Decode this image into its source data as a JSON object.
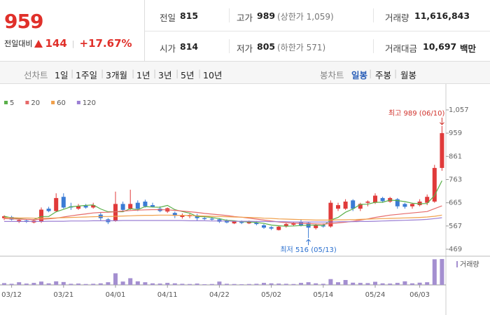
{
  "header": {
    "price": "959",
    "change_label": "전일대비",
    "change": "144",
    "change_rate": "+17.67%"
  },
  "stats": [
    [
      {
        "label": "전일",
        "value": "815"
      },
      {
        "label": "고가",
        "value": "989",
        "note": "(상한가 1,059)"
      },
      {
        "label": "거래량",
        "value": "11,616,843"
      }
    ],
    [
      {
        "label": "시가",
        "value": "814"
      },
      {
        "label": "저가",
        "value": "805",
        "note": "(하한가 571)"
      },
      {
        "label": "거래대금",
        "value": "10,697",
        "unit": "백만"
      }
    ]
  ],
  "tabs": {
    "line_label": "선차트",
    "line_periods": [
      "1일",
      "1주일",
      "3개월",
      "1년",
      "3년",
      "5년",
      "10년"
    ],
    "candle_label": "봉차트",
    "candle_periods": [
      "일봉",
      "주봉",
      "월봉"
    ]
  },
  "chart_data": {
    "type": "candlestick",
    "categories": [
      null,
      "03/12",
      null,
      null,
      null,
      null,
      null,
      null,
      "03/21",
      null,
      null,
      null,
      null,
      null,
      null,
      "04/01",
      null,
      null,
      null,
      null,
      null,
      null,
      "04/11",
      null,
      null,
      null,
      null,
      null,
      null,
      "04/22",
      null,
      null,
      null,
      null,
      null,
      null,
      "05/02",
      null,
      null,
      null,
      null,
      null,
      null,
      "05/14",
      null,
      null,
      null,
      null,
      null,
      null,
      "05/24",
      null,
      null,
      null,
      null,
      null,
      "06/03",
      null,
      null,
      null
    ],
    "open": [
      600,
      605,
      585,
      590,
      582,
      585,
      640,
      630,
      690,
      650,
      640,
      652,
      645,
      615,
      595,
      588,
      660,
      640,
      665,
      670,
      655,
      640,
      628,
      622,
      605,
      608,
      612,
      600,
      598,
      595,
      590,
      578,
      585,
      578,
      582,
      570,
      562,
      550,
      565,
      572,
      585,
      580,
      558,
      570,
      565,
      640,
      640,
      675,
      640,
      665,
      665,
      685,
      670,
      680,
      660,
      650,
      655,
      665,
      670,
      812
    ],
    "high": [
      612,
      610,
      598,
      596,
      594,
      645,
      648,
      705,
      705,
      665,
      660,
      660,
      665,
      625,
      600,
      712,
      670,
      720,
      675,
      678,
      665,
      650,
      645,
      628,
      620,
      618,
      618,
      610,
      605,
      600,
      595,
      590,
      590,
      590,
      588,
      575,
      566,
      568,
      580,
      585,
      595,
      585,
      575,
      578,
      675,
      665,
      680,
      680,
      665,
      675,
      705,
      690,
      690,
      685,
      665,
      665,
      680,
      700,
      825,
      989
    ],
    "low": [
      592,
      590,
      580,
      580,
      578,
      580,
      625,
      625,
      640,
      635,
      635,
      640,
      640,
      590,
      575,
      585,
      630,
      635,
      630,
      645,
      645,
      625,
      622,
      600,
      598,
      600,
      590,
      592,
      590,
      580,
      578,
      575,
      575,
      575,
      570,
      555,
      550,
      548,
      560,
      568,
      565,
      516,
      552,
      560,
      560,
      630,
      635,
      630,
      630,
      650,
      660,
      665,
      665,
      640,
      640,
      640,
      650,
      655,
      665,
      800
    ],
    "close": [
      608,
      594,
      592,
      585,
      590,
      636,
      630,
      685,
      645,
      645,
      652,
      645,
      655,
      600,
      583,
      660,
      635,
      660,
      640,
      650,
      648,
      630,
      642,
      610,
      612,
      613,
      600,
      596,
      594,
      585,
      582,
      588,
      580,
      586,
      575,
      560,
      556,
      564,
      575,
      580,
      570,
      560,
      570,
      565,
      665,
      655,
      670,
      640,
      660,
      670,
      695,
      672,
      685,
      650,
      648,
      660,
      670,
      690,
      812,
      959
    ],
    "volume": [
      800000,
      500000,
      1200000,
      600000,
      900000,
      1500000,
      700000,
      1600000,
      1300000,
      500000,
      600000,
      400000,
      500000,
      700000,
      1200000,
      5200000,
      1500000,
      3000000,
      1600000,
      1200000,
      700000,
      600000,
      900000,
      700000,
      500000,
      400000,
      600000,
      300000,
      400000,
      1500000,
      500000,
      400000,
      300000,
      400000,
      500000,
      900000,
      700000,
      600000,
      500000,
      400000,
      900000,
      1200000,
      700000,
      500000,
      2600000,
      1200000,
      2200000,
      1000000,
      900000,
      800000,
      1400000,
      700000,
      600000,
      900000,
      1600000,
      700000,
      1000000,
      1200000,
      11500000,
      11616843
    ],
    "volume_label": "거래량",
    "volume_color": "#a48fd0",
    "up_color": "#e03a3a",
    "down_color": "#3a7bd5",
    "series": [
      {
        "name": "5",
        "color": "#5ab04a",
        "values": [
          608,
          601,
          598,
          595,
          594,
          607,
          607,
          627,
          637,
          648,
          651,
          654,
          656,
          639,
          627,
          627,
          627,
          640,
          636,
          649,
          647,
          646,
          654,
          636,
          628,
          621,
          607,
          606,
          603,
          598,
          591,
          589,
          585,
          584,
          582,
          578,
          571,
          568,
          566,
          567,
          569,
          570,
          571,
          569,
          592,
          603,
          625,
          639,
          658,
          659,
          667,
          667,
          676,
          674,
          670,
          663,
          661,
          662,
          696,
          758
        ]
      },
      {
        "name": "20",
        "color": "#e66a6a",
        "values": [
          598,
          597,
          596,
          595,
          594,
          595,
          597,
          600,
          605,
          610,
          614,
          618,
          622,
          624,
          625,
          627,
          630,
          632,
          634,
          635,
          636,
          636,
          635,
          633,
          630,
          627,
          624,
          620,
          617,
          614,
          611,
          607,
          604,
          600,
          596,
          592,
          588,
          584,
          581,
          579,
          578,
          577,
          576,
          575,
          577,
          580,
          583,
          587,
          592,
          597,
          603,
          608,
          613,
          616,
          619,
          622,
          625,
          628,
          640,
          652
        ]
      },
      {
        "name": "60",
        "color": "#f0a04b",
        "values": [
          602,
          602,
          601,
          601,
          600,
          600,
          600,
          601,
          602,
          603,
          604,
          605,
          606,
          607,
          607,
          608,
          609,
          610,
          611,
          612,
          612,
          613,
          613,
          612,
          612,
          611,
          610,
          609,
          608,
          607,
          606,
          605,
          604,
          603,
          602,
          600,
          599,
          597,
          596,
          595,
          594,
          593,
          592,
          592,
          592,
          593,
          593,
          594,
          595,
          596,
          597,
          598,
          599,
          600,
          601,
          602,
          603,
          605,
          608,
          613
        ]
      },
      {
        "name": "120",
        "color": "#9b7fd4",
        "values": [
          586,
          586,
          586,
          586,
          586,
          586,
          587,
          587,
          587,
          588,
          588,
          588,
          589,
          589,
          589,
          589,
          590,
          590,
          590,
          590,
          590,
          590,
          590,
          590,
          590,
          589,
          589,
          589,
          588,
          588,
          588,
          587,
          587,
          587,
          586,
          586,
          585,
          585,
          585,
          584,
          584,
          584,
          584,
          584,
          584,
          585,
          585,
          585,
          586,
          586,
          587,
          588,
          589,
          590,
          591,
          592,
          593,
          595,
          598,
          602
        ]
      }
    ],
    "ylim": [
      469,
      1057
    ],
    "yticks": [
      {
        "value": 1057,
        "label": "1,057"
      },
      959,
      861,
      763,
      665,
      567,
      469
    ],
    "annotations": {
      "high": "최고 989 (06/10)",
      "low": "최저 516 (05/13)"
    }
  }
}
